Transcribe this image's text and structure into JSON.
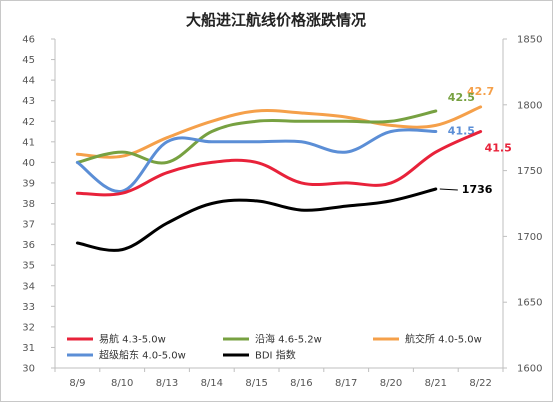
{
  "chart_data": {
    "type": "line",
    "title": "大船进江航线价格涨跌情况",
    "categories": [
      "8/9",
      "8/10",
      "8/13",
      "8/14",
      "8/15",
      "8/16",
      "8/17",
      "8/20",
      "8/21",
      "8/22"
    ],
    "y_left": {
      "min": 30,
      "max": 46,
      "step": 1
    },
    "y_right": {
      "min": 1600,
      "max": 1850,
      "step": 50
    },
    "grid": false,
    "legend_position": "bottom-left",
    "series": [
      {
        "name": "易航 4.3-5.0w",
        "axis": "left",
        "color": "#e8223a",
        "values": [
          38.5,
          38.5,
          39.5,
          40.0,
          40.0,
          39.0,
          39.0,
          39.0,
          40.5,
          41.5
        ],
        "end_label": "41.5"
      },
      {
        "name": "沿海 4.6-5.2w",
        "axis": "left",
        "color": "#77a141",
        "values": [
          40.0,
          40.5,
          40.0,
          41.5,
          42.0,
          42.0,
          42.0,
          42.0,
          42.5,
          null
        ],
        "end_label": "42.5"
      },
      {
        "name": "航交所 4.0-5.0w",
        "axis": "left",
        "color": "#f5a04a",
        "values": [
          40.4,
          40.3,
          41.2,
          42.0,
          42.5,
          42.4,
          42.2,
          41.8,
          41.8,
          42.7
        ],
        "end_label": "42.7"
      },
      {
        "name": "超级船东 4.0-5.0w",
        "axis": "left",
        "color": "#5b8ed6",
        "values": [
          40.0,
          38.6,
          41.0,
          41.0,
          41.0,
          41.0,
          40.5,
          41.5,
          41.5,
          null
        ],
        "end_label": "41.5"
      },
      {
        "name": "BDI 指数",
        "axis": "right",
        "color": "#000000",
        "values": [
          1695,
          1690,
          1710,
          1725,
          1727,
          1720,
          1723,
          1727,
          1736,
          null
        ],
        "end_label": "1736"
      }
    ]
  }
}
